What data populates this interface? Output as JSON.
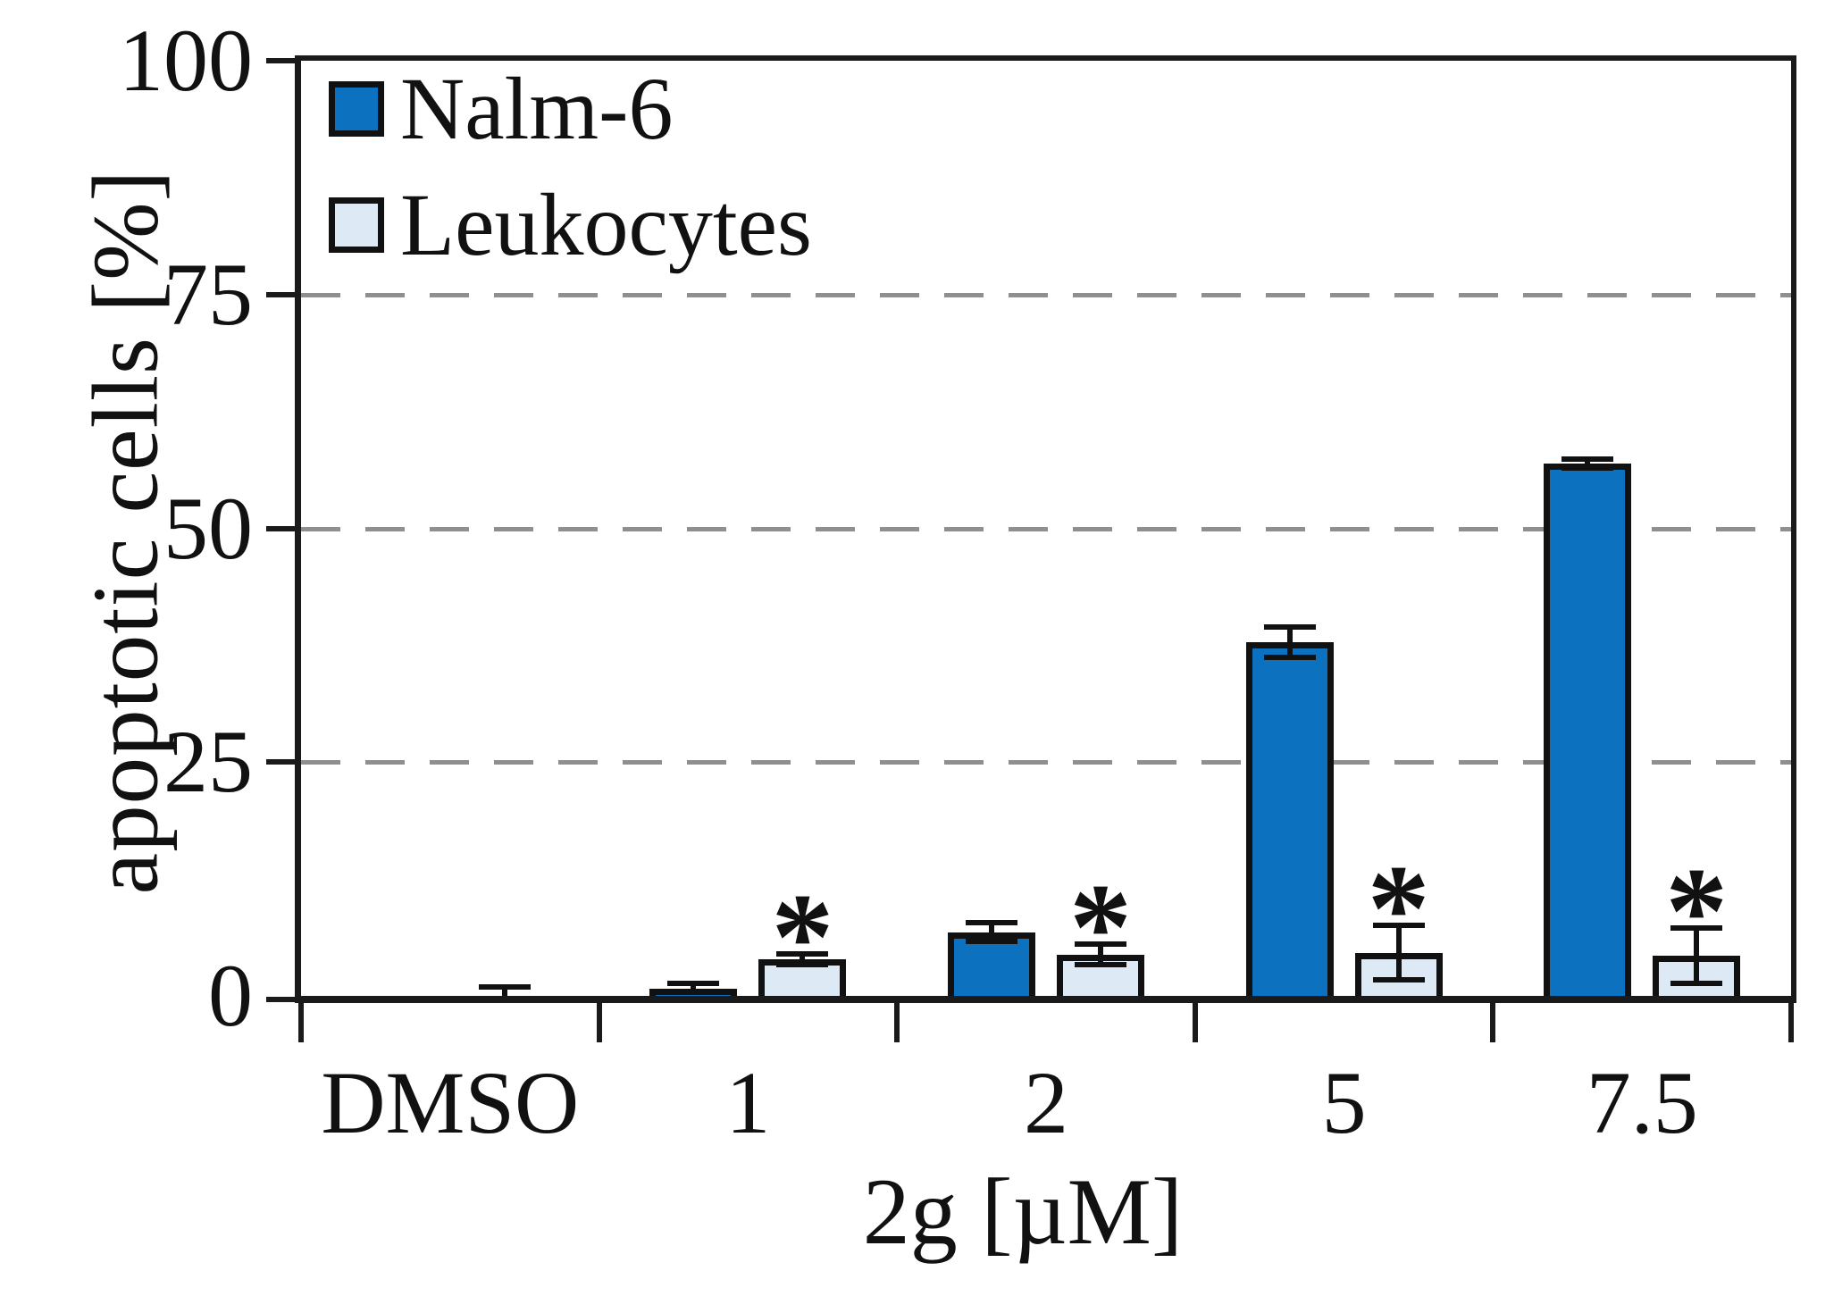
{
  "chart_data": {
    "type": "bar",
    "title": "",
    "xlabel": "2g [µM]",
    "ylabel": "apoptotic cells [%]",
    "categories": [
      "DMSO",
      "1",
      "2",
      "5",
      "7.5"
    ],
    "series": [
      {
        "name": "Nalm-6",
        "color": "#0c72bf",
        "values": [
          0,
          0.8,
          6.8,
          37.8,
          56.9
        ],
        "errors": [
          0,
          0.5,
          1.0,
          1.6,
          0.5
        ],
        "significant": [
          false,
          false,
          false,
          false,
          false
        ]
      },
      {
        "name": "Leukocytes",
        "color": "#dde9f5",
        "values": [
          0,
          3.9,
          4.4,
          4.6,
          4.3
        ],
        "errors": [
          1.0,
          0.6,
          1.1,
          2.9,
          3.0
        ],
        "significant": [
          false,
          true,
          true,
          true,
          true
        ]
      }
    ],
    "yticks": [
      0,
      25,
      50,
      75,
      100
    ],
    "ylim": [
      0,
      100
    ],
    "grid_values": [
      25,
      50,
      75
    ],
    "grid_style": "dashed",
    "legend_position": "top-left",
    "significance_marker": "*",
    "axis_color": "#1a1a1a",
    "gridline_color": "#8f8f8f"
  }
}
